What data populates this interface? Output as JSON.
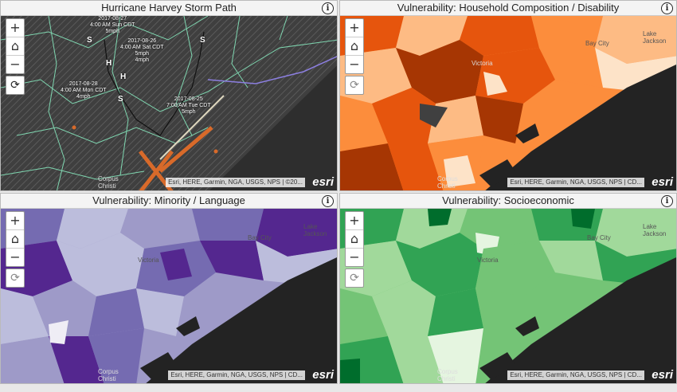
{
  "panels": [
    {
      "title": "Hurricane Harvey Storm Path",
      "attribution": "Esri, HERE, Garmin, NGA, USGS, NPS | ©20...",
      "logo": "esri"
    },
    {
      "title": "Vulnerability: Household Composition / Disability",
      "attribution": "Esri, HERE, Garmin, NGA, USGS, NPS | CD...",
      "logo": "esri"
    },
    {
      "title": "Vulnerability: Minority / Language",
      "attribution": "Esri, HERE, Garmin, NGA, USGS, NPS | CD...",
      "logo": "esri"
    },
    {
      "title": "Vulnerability: Socioeconomic",
      "attribution": "Esri, HERE, Garmin, NGA, USGS, NPS | CD...",
      "logo": "esri"
    }
  ],
  "controls": {
    "zoom_in": "+",
    "home": "⌂",
    "zoom_out": "−",
    "refresh": "⟳",
    "info": "i"
  },
  "places": {
    "victoria": "Victoria",
    "bay_city": "Bay City",
    "lake_jackson": "Lake\nJackson",
    "corpus_christi": "Corpus\nChristi"
  },
  "storm": {
    "labels": [
      "2017-08-27\n4:00 AM Sun CDT\n5mph",
      "2017-08-26\n4:00 AM Sat CDT\n5mph\n4mph",
      "2017-08-28\n4:00 AM Mon CDT\n4mph",
      "2017-08-25\n7:00 AM Tue CDT\n5mph"
    ],
    "symbols": [
      "S",
      "H",
      "H",
      "S",
      "S"
    ]
  },
  "colors": {
    "storm_bg": "#4a4a4a",
    "storm_lines": "#7fd6b0",
    "water": "#232323",
    "orange": [
      "#fde3c8",
      "#fdbb84",
      "#fc8d3c",
      "#e6550d",
      "#a63603"
    ],
    "purple": [
      "#efedf5",
      "#bcbddc",
      "#9e9ac8",
      "#756bb1",
      "#54278f"
    ],
    "green": [
      "#e5f5e0",
      "#a1d99b",
      "#74c476",
      "#31a354",
      "#006d2c"
    ]
  }
}
